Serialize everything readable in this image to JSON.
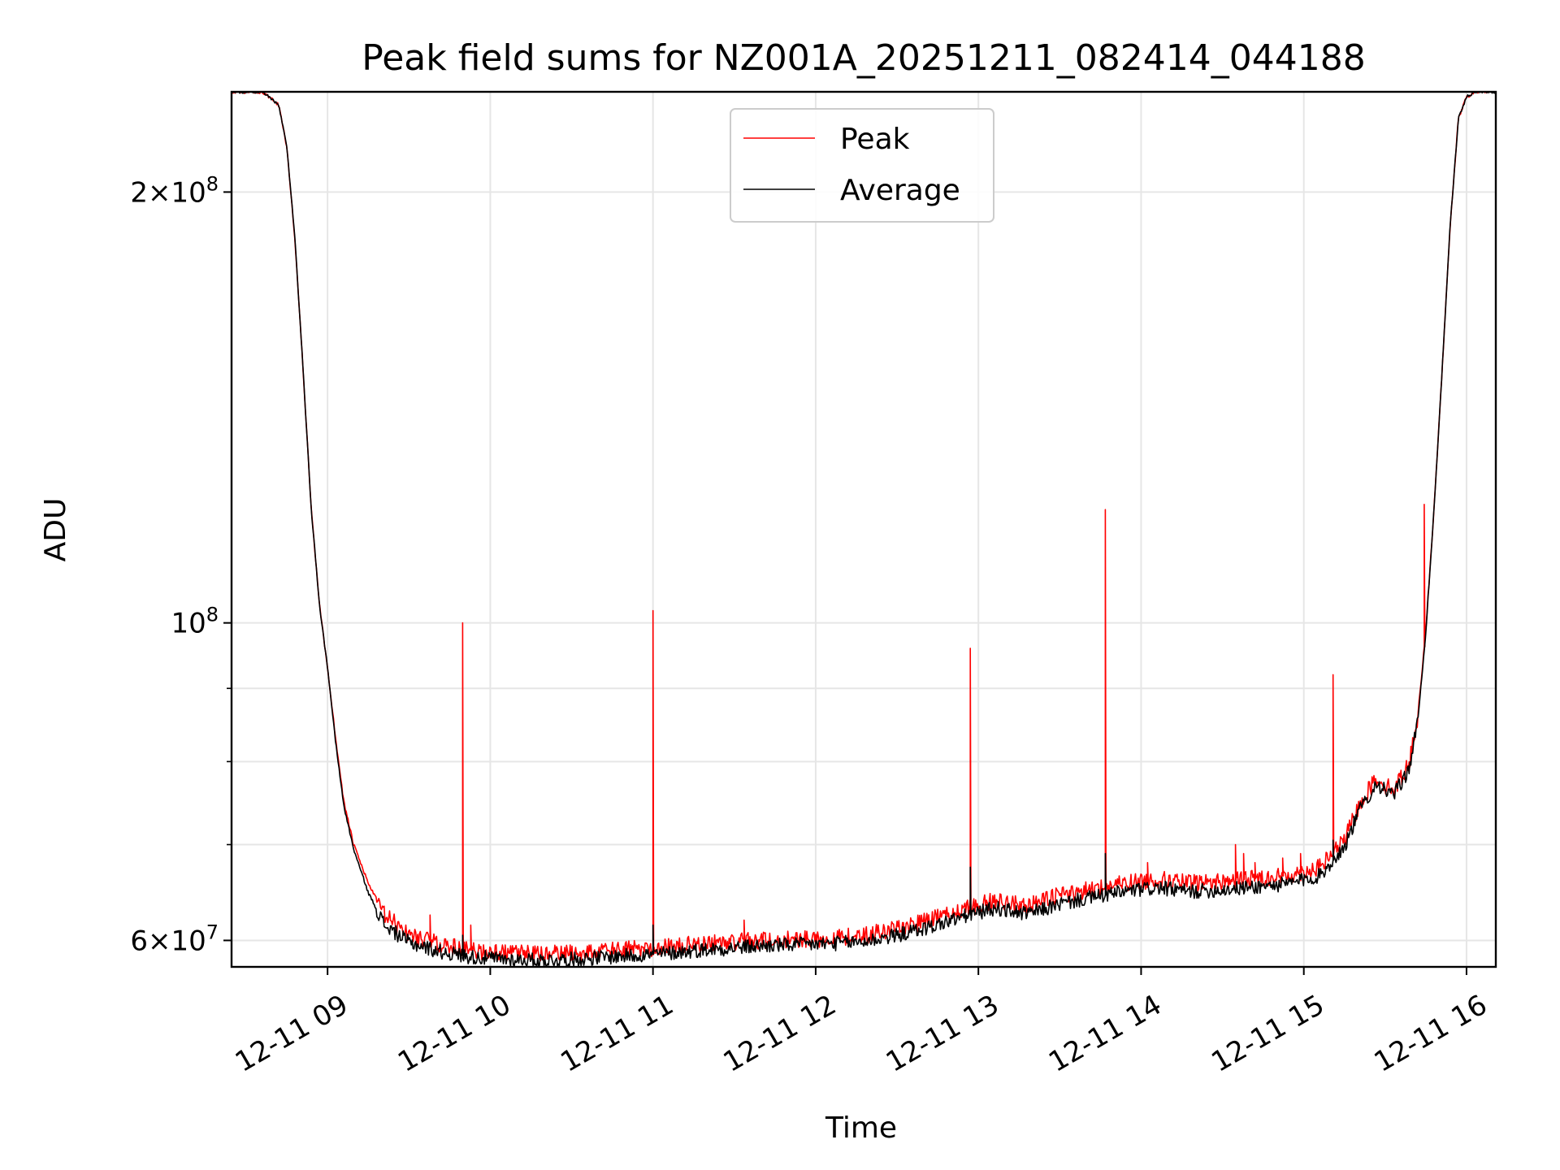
{
  "chart_data": {
    "type": "line",
    "title": "Peak field sums for NZ001A_20251211_082414_044188",
    "xlabel": "Time",
    "ylabel": "ADU",
    "yscale": "log",
    "ylim": [
      57500000,
      235000000
    ],
    "xlim_hours": [
      8.41,
      16.18
    ],
    "grid": true,
    "legend_position": "upper center",
    "x_ticks": [
      {
        "hour": 9,
        "label": "12-11 09"
      },
      {
        "hour": 10,
        "label": "12-11 10"
      },
      {
        "hour": 11,
        "label": "12-11 11"
      },
      {
        "hour": 12,
        "label": "12-11 12"
      },
      {
        "hour": 13,
        "label": "12-11 13"
      },
      {
        "hour": 14,
        "label": "12-11 14"
      },
      {
        "hour": 15,
        "label": "12-11 15"
      },
      {
        "hour": 16,
        "label": "12-11 16"
      }
    ],
    "y_major_ticks": [
      {
        "value": 60000000,
        "mantissa": "6",
        "exponent": "7"
      },
      {
        "value": 100000000,
        "mantissa": "",
        "exponent": "8"
      },
      {
        "value": 200000000,
        "mantissa": "2",
        "exponent": "8"
      }
    ],
    "y_minor_ticks": [
      70000000,
      80000000,
      90000000
    ],
    "series": [
      {
        "name": "Peak",
        "color": "#ff0000",
        "x_hours": [
          8.41,
          8.6,
          8.7,
          8.75,
          8.8,
          8.85,
          8.9,
          8.95,
          9.0,
          9.05,
          9.1,
          9.16,
          9.25,
          9.35,
          9.5,
          9.7,
          9.9,
          10.1,
          10.3,
          10.5,
          10.7,
          10.9,
          11.1,
          11.3,
          11.5,
          11.7,
          11.9,
          12.1,
          12.3,
          12.5,
          12.7,
          12.9,
          13.1,
          13.3,
          13.5,
          13.7,
          13.9,
          14.1,
          14.3,
          14.5,
          14.7,
          14.9,
          15.1,
          15.25,
          15.35,
          15.45,
          15.5,
          15.55,
          15.6,
          15.65,
          15.7,
          15.75,
          15.8,
          15.85,
          15.9,
          15.95,
          16.0,
          16.05,
          16.18
        ],
        "values": [
          235000000,
          235000000,
          230000000,
          215000000,
          185000000,
          150000000,
          120000000,
          103000000,
          93000000,
          83000000,
          75000000,
          70000000,
          65800000,
          62500000,
          60600000,
          59600000,
          59000000,
          58800000,
          58700000,
          58800000,
          59000000,
          59200000,
          59400000,
          59700000,
          59900000,
          60000000,
          60100000,
          60200000,
          60500000,
          61200000,
          62000000,
          63000000,
          64000000,
          63500000,
          64500000,
          65200000,
          65800000,
          66200000,
          65800000,
          66000000,
          66300000,
          66600000,
          67500000,
          70500000,
          75000000,
          78000000,
          77000000,
          76500000,
          78000000,
          80000000,
          86000000,
          99000000,
          120000000,
          150000000,
          190000000,
          225000000,
          233000000,
          235000000,
          235000000
        ],
        "spikes": [
          {
            "hour": 9.63,
            "value": 62500000
          },
          {
            "hour": 9.83,
            "value": 100000000
          },
          {
            "hour": 9.88,
            "value": 61500000
          },
          {
            "hour": 11.0,
            "value": 102000000
          },
          {
            "hour": 11.56,
            "value": 62000000
          },
          {
            "hour": 12.95,
            "value": 96000000
          },
          {
            "hour": 13.78,
            "value": 120000000
          },
          {
            "hour": 14.04,
            "value": 68000000
          },
          {
            "hour": 14.58,
            "value": 70000000
          },
          {
            "hour": 14.63,
            "value": 69000000
          },
          {
            "hour": 14.7,
            "value": 68000000
          },
          {
            "hour": 14.87,
            "value": 68500000
          },
          {
            "hour": 14.98,
            "value": 69000000
          },
          {
            "hour": 15.18,
            "value": 92000000
          },
          {
            "hour": 15.74,
            "value": 121000000
          }
        ]
      },
      {
        "name": "Average",
        "color": "#000000",
        "x_hours": [
          8.41,
          8.6,
          8.7,
          8.75,
          8.8,
          8.85,
          8.9,
          8.95,
          9.0,
          9.05,
          9.1,
          9.16,
          9.25,
          9.35,
          9.5,
          9.7,
          9.9,
          10.1,
          10.3,
          10.5,
          10.7,
          10.9,
          11.1,
          11.3,
          11.5,
          11.7,
          11.9,
          12.1,
          12.3,
          12.5,
          12.7,
          12.9,
          13.1,
          13.3,
          13.5,
          13.7,
          13.9,
          14.1,
          14.3,
          14.5,
          14.7,
          14.9,
          15.1,
          15.25,
          15.35,
          15.45,
          15.5,
          15.55,
          15.6,
          15.65,
          15.7,
          15.75,
          15.8,
          15.85,
          15.9,
          15.95,
          16.0,
          16.05,
          16.18
        ],
        "values": [
          235000000,
          235000000,
          230000000,
          215000000,
          185000000,
          150000000,
          120000000,
          103000000,
          93000000,
          82500000,
          74500000,
          69500000,
          64800000,
          61500000,
          59800000,
          58900000,
          58400000,
          58200000,
          58100000,
          58200000,
          58400000,
          58600000,
          58800000,
          59100000,
          59300000,
          59500000,
          59600000,
          59700000,
          59900000,
          60500000,
          61300000,
          62300000,
          63200000,
          62600000,
          63600000,
          64300000,
          64900000,
          65300000,
          64900000,
          65100000,
          65400000,
          65700000,
          66600000,
          69800000,
          74300000,
          77300000,
          76300000,
          75800000,
          77300000,
          79300000,
          85300000,
          98500000,
          120000000,
          150000000,
          190000000,
          225000000,
          233000000,
          235000000,
          235000000
        ],
        "spikes": [
          {
            "hour": 9.83,
            "value": 60500000
          },
          {
            "hour": 11.0,
            "value": 61500000
          },
          {
            "hour": 12.95,
            "value": 67500000
          },
          {
            "hour": 13.78,
            "value": 69000000
          },
          {
            "hour": 15.18,
            "value": 70500000
          }
        ]
      }
    ]
  }
}
